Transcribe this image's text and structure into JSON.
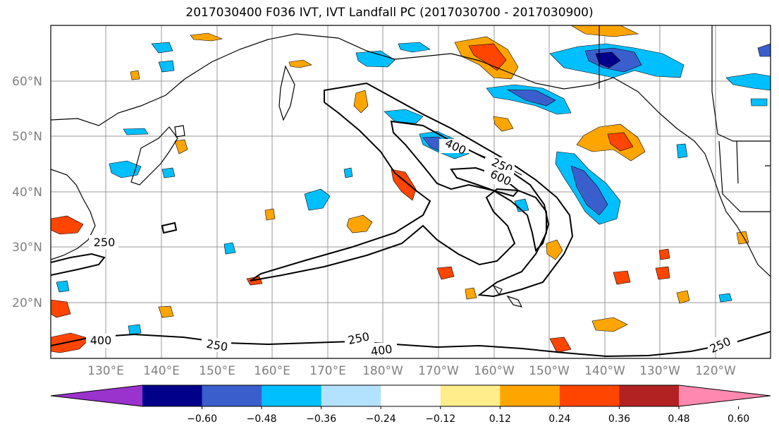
{
  "title": "2017030400 F036 IVT, IVT Landfall PC (2017030700 - 2017030900)",
  "latitude_labels": [
    "20°N",
    "30°N",
    "40°N",
    "50°N",
    "60°N"
  ],
  "longitude_labels": [
    "130°E",
    "140°E",
    "150°E",
    "160°E",
    "170°E",
    "180°W",
    "170°W",
    "160°W",
    "150°W",
    "140°W",
    "130°W",
    "120°W"
  ],
  "ivt_contour_labels": [
    "250",
    "250",
    "400",
    "250",
    "600",
    "400",
    "250",
    "400",
    "250"
  ],
  "colorbar": {
    "tick_labels": [
      "−0.60",
      "−0.48",
      "−0.36",
      "−0.24",
      "−0.12",
      "0.12",
      "0.24",
      "0.36",
      "0.48",
      "0.60"
    ],
    "colors": [
      "#9a32cd",
      "#00008b",
      "#3a5fcd",
      "#00bfff",
      "#b2e2ff",
      "#ffffff",
      "#ffec8b",
      "#ffa500",
      "#ff4500",
      "#b22222",
      "#ff88b0"
    ]
  }
}
